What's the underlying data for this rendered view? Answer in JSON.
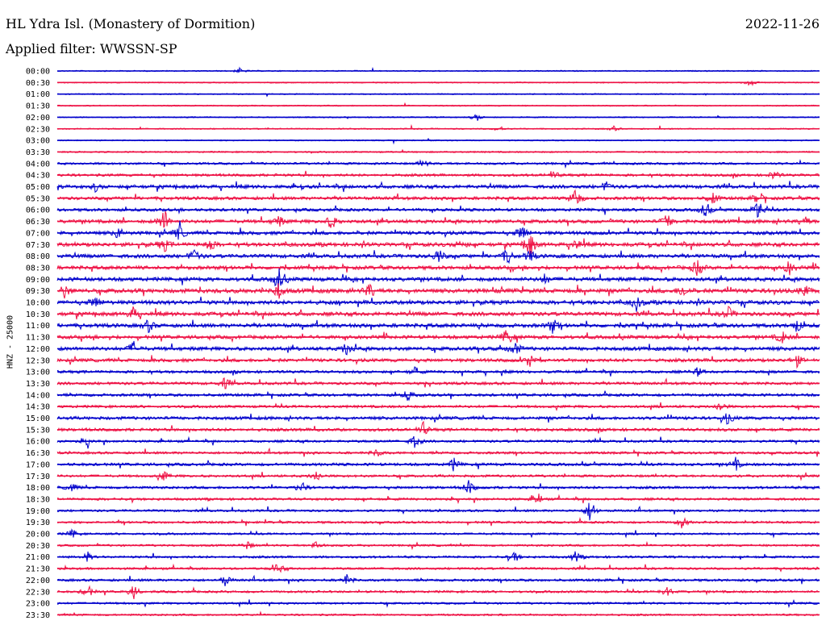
{
  "header": {
    "station": "HL Ydra Isl. (Monastery of Dormition)",
    "date": "2022-11-26",
    "filter": "Applied filter: WWSSN-SP"
  },
  "chart_data": {
    "type": "line",
    "title": "HL Ydra Isl. (Monastery of Dormition)",
    "ylabel": "HNZ - 25000",
    "colors": {
      "even_row": "#0000cc",
      "odd_row": "#ee1144"
    },
    "rows": [
      {
        "label": "00:00",
        "activity": 0.05,
        "events": [
          [
            0.24,
            4
          ]
        ]
      },
      {
        "label": "00:30",
        "activity": 0.05,
        "events": [
          [
            0.91,
            5
          ]
        ]
      },
      {
        "label": "01:00",
        "activity": 0.06,
        "events": []
      },
      {
        "label": "01:30",
        "activity": 0.05,
        "events": []
      },
      {
        "label": "02:00",
        "activity": 0.06,
        "events": [
          [
            0.55,
            5
          ]
        ]
      },
      {
        "label": "02:30",
        "activity": 0.08,
        "events": [
          [
            0.58,
            4
          ],
          [
            0.73,
            3
          ]
        ]
      },
      {
        "label": "03:00",
        "activity": 0.06,
        "events": []
      },
      {
        "label": "03:30",
        "activity": 0.15,
        "events": []
      },
      {
        "label": "04:00",
        "activity": 0.35,
        "events": [
          [
            0.48,
            5
          ]
        ]
      },
      {
        "label": "04:30",
        "activity": 0.45,
        "events": [
          [
            0.65,
            6
          ],
          [
            0.94,
            6
          ]
        ]
      },
      {
        "label": "05:00",
        "activity": 0.7,
        "events": [
          [
            0.05,
            5
          ],
          [
            0.72,
            6
          ]
        ]
      },
      {
        "label": "05:30",
        "activity": 0.6,
        "events": [
          [
            0.68,
            14
          ],
          [
            0.86,
            8
          ],
          [
            0.92,
            10
          ]
        ]
      },
      {
        "label": "06:00",
        "activity": 0.55,
        "events": [
          [
            0.85,
            10
          ],
          [
            0.92,
            14
          ]
        ]
      },
      {
        "label": "06:30",
        "activity": 0.7,
        "events": [
          [
            0.14,
            18
          ],
          [
            0.29,
            8
          ],
          [
            0.36,
            10
          ],
          [
            0.8,
            10
          ],
          [
            0.98,
            7
          ]
        ]
      },
      {
        "label": "07:00",
        "activity": 0.7,
        "events": [
          [
            0.08,
            8
          ],
          [
            0.16,
            12
          ],
          [
            0.61,
            12
          ]
        ]
      },
      {
        "label": "07:30",
        "activity": 0.8,
        "events": [
          [
            0.14,
            10
          ],
          [
            0.2,
            9
          ],
          [
            0.53,
            6
          ],
          [
            0.62,
            18
          ],
          [
            0.68,
            8
          ]
        ]
      },
      {
        "label": "08:00",
        "activity": 0.75,
        "events": [
          [
            0.18,
            9
          ],
          [
            0.5,
            10
          ],
          [
            0.59,
            10
          ],
          [
            0.62,
            8
          ]
        ]
      },
      {
        "label": "08:30",
        "activity": 0.75,
        "events": [
          [
            0.84,
            12
          ],
          [
            0.96,
            9
          ]
        ]
      },
      {
        "label": "09:00",
        "activity": 0.8,
        "events": [
          [
            0.29,
            16
          ],
          [
            0.64,
            6
          ]
        ]
      },
      {
        "label": "09:30",
        "activity": 0.9,
        "events": [
          [
            0.01,
            9
          ],
          [
            0.29,
            10
          ],
          [
            0.41,
            10
          ],
          [
            0.82,
            8
          ],
          [
            0.98,
            8
          ]
        ]
      },
      {
        "label": "10:00",
        "activity": 0.85,
        "events": [
          [
            0.05,
            8
          ],
          [
            0.76,
            10
          ]
        ]
      },
      {
        "label": "10:30",
        "activity": 0.8,
        "events": [
          [
            0.1,
            8
          ],
          [
            0.88,
            9
          ]
        ]
      },
      {
        "label": "11:00",
        "activity": 0.8,
        "events": [
          [
            0.12,
            8
          ],
          [
            0.65,
            9
          ],
          [
            0.97,
            8
          ]
        ]
      },
      {
        "label": "11:30",
        "activity": 0.7,
        "events": [
          [
            0.59,
            12
          ],
          [
            0.95,
            9
          ]
        ]
      },
      {
        "label": "12:00",
        "activity": 0.75,
        "events": [
          [
            0.1,
            9
          ],
          [
            0.38,
            10
          ],
          [
            0.6,
            10
          ]
        ]
      },
      {
        "label": "12:30",
        "activity": 0.65,
        "events": [
          [
            0.62,
            10
          ],
          [
            0.97,
            8
          ]
        ]
      },
      {
        "label": "13:00",
        "activity": 0.5,
        "events": [
          [
            0.47,
            6
          ],
          [
            0.84,
            6
          ]
        ]
      },
      {
        "label": "13:30",
        "activity": 0.5,
        "events": [
          [
            0.22,
            7
          ]
        ]
      },
      {
        "label": "14:00",
        "activity": 0.5,
        "events": [
          [
            0.46,
            7
          ]
        ]
      },
      {
        "label": "14:30",
        "activity": 0.45,
        "events": [
          [
            0.87,
            7
          ]
        ]
      },
      {
        "label": "15:00",
        "activity": 0.6,
        "events": [
          [
            0.88,
            9
          ]
        ]
      },
      {
        "label": "15:30",
        "activity": 0.55,
        "events": [
          [
            0.48,
            9
          ]
        ]
      },
      {
        "label": "16:00",
        "activity": 0.4,
        "events": [
          [
            0.47,
            10
          ],
          [
            0.04,
            6
          ]
        ]
      },
      {
        "label": "16:30",
        "activity": 0.4,
        "events": [
          [
            0.42,
            6
          ]
        ]
      },
      {
        "label": "17:00",
        "activity": 0.5,
        "events": [
          [
            0.52,
            8
          ],
          [
            0.89,
            8
          ]
        ]
      },
      {
        "label": "17:30",
        "activity": 0.4,
        "events": [
          [
            0.34,
            8
          ],
          [
            0.14,
            6
          ]
        ]
      },
      {
        "label": "18:00",
        "activity": 0.45,
        "events": [
          [
            0.32,
            8
          ],
          [
            0.54,
            10
          ],
          [
            0.02,
            6
          ]
        ]
      },
      {
        "label": "18:30",
        "activity": 0.4,
        "events": [
          [
            0.63,
            8
          ]
        ]
      },
      {
        "label": "19:00",
        "activity": 0.35,
        "events": [
          [
            0.7,
            18
          ]
        ]
      },
      {
        "label": "19:30",
        "activity": 0.35,
        "events": [
          [
            0.82,
            8
          ]
        ]
      },
      {
        "label": "20:00",
        "activity": 0.3,
        "events": [
          [
            0.02,
            6
          ]
        ]
      },
      {
        "label": "20:30",
        "activity": 0.3,
        "events": [
          [
            0.25,
            6
          ],
          [
            0.34,
            6
          ]
        ]
      },
      {
        "label": "21:00",
        "activity": 0.35,
        "events": [
          [
            0.04,
            6
          ],
          [
            0.6,
            7
          ],
          [
            0.68,
            7
          ]
        ]
      },
      {
        "label": "21:30",
        "activity": 0.35,
        "events": [
          [
            0.29,
            8
          ]
        ]
      },
      {
        "label": "22:00",
        "activity": 0.4,
        "events": [
          [
            0.22,
            7
          ],
          [
            0.38,
            7
          ]
        ]
      },
      {
        "label": "22:30",
        "activity": 0.35,
        "events": [
          [
            0.04,
            9
          ],
          [
            0.1,
            9
          ],
          [
            0.8,
            7
          ]
        ]
      },
      {
        "label": "23:00",
        "activity": 0.3,
        "events": []
      },
      {
        "label": "23:30",
        "activity": 0.25,
        "events": []
      }
    ]
  }
}
